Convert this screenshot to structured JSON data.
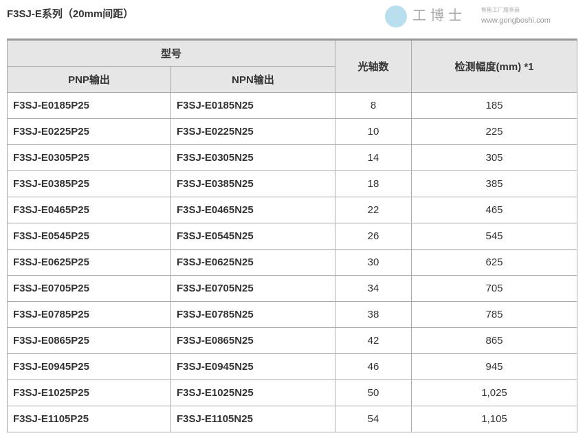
{
  "title": "F3SJ-E系列（20mm间距）",
  "headers": {
    "model": "型号",
    "pnp": "PNP输出",
    "npn": "NPN输出",
    "axes": "光轴数",
    "width": "检测幅度(mm) *1"
  },
  "rows": [
    {
      "pnp": "F3SJ-E0185P25",
      "npn": "F3SJ-E0185N25",
      "axes": "8",
      "width": "185"
    },
    {
      "pnp": "F3SJ-E0225P25",
      "npn": "F3SJ-E0225N25",
      "axes": "10",
      "width": "225"
    },
    {
      "pnp": "F3SJ-E0305P25",
      "npn": "F3SJ-E0305N25",
      "axes": "14",
      "width": "305"
    },
    {
      "pnp": "F3SJ-E0385P25",
      "npn": "F3SJ-E0385N25",
      "axes": "18",
      "width": "385"
    },
    {
      "pnp": "F3SJ-E0465P25",
      "npn": "F3SJ-E0465N25",
      "axes": "22",
      "width": "465"
    },
    {
      "pnp": "F3SJ-E0545P25",
      "npn": "F3SJ-E0545N25",
      "axes": "26",
      "width": "545"
    },
    {
      "pnp": "F3SJ-E0625P25",
      "npn": "F3SJ-E0625N25",
      "axes": "30",
      "width": "625"
    },
    {
      "pnp": "F3SJ-E0705P25",
      "npn": "F3SJ-E0705N25",
      "axes": "34",
      "width": "705"
    },
    {
      "pnp": "F3SJ-E0785P25",
      "npn": "F3SJ-E0785N25",
      "axes": "38",
      "width": "785"
    },
    {
      "pnp": "F3SJ-E0865P25",
      "npn": "F3SJ-E0865N25",
      "axes": "42",
      "width": "865"
    },
    {
      "pnp": "F3SJ-E0945P25",
      "npn": "F3SJ-E0945N25",
      "axes": "46",
      "width": "945"
    },
    {
      "pnp": "F3SJ-E1025P25",
      "npn": "F3SJ-E1025N25",
      "axes": "50",
      "width": "1,025"
    },
    {
      "pnp": "F3SJ-E1105P25",
      "npn": "F3SJ-E1105N25",
      "axes": "54",
      "width": "1,105"
    }
  ],
  "watermark": {
    "name": "工博士",
    "tagline": "智能工厂服务商",
    "url": "www.gongboshi.com"
  }
}
